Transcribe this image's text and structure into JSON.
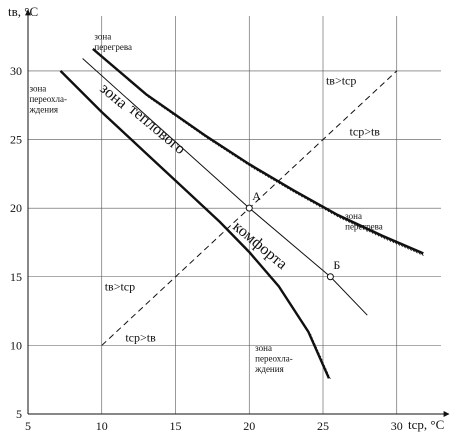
{
  "chart_data": {
    "type": "line",
    "title": "",
    "xlabel": "tср, °C",
    "ylabel": "tв, °C",
    "xlim": [
      5,
      33
    ],
    "ylim": [
      5,
      34
    ],
    "grid": true,
    "x_ticks": [
      "5",
      "10",
      "15",
      "20",
      "25",
      "30"
    ],
    "y_ticks": [
      "5",
      "10",
      "15",
      "20",
      "25",
      "30"
    ],
    "series": [
      {
        "role": "upper-boundary",
        "hatched": true,
        "points": [
          [
            9.4,
            31.6
          ],
          [
            13,
            28.3
          ],
          [
            17,
            25.3
          ],
          [
            20,
            23.2
          ],
          [
            23,
            21.3
          ],
          [
            26,
            19.5
          ],
          [
            29,
            18
          ],
          [
            31.8,
            16.7
          ]
        ]
      },
      {
        "role": "lower-boundary",
        "hatched": true,
        "points": [
          [
            7.2,
            30.0
          ],
          [
            10,
            27.0
          ],
          [
            13,
            24.0
          ],
          [
            16,
            21.0
          ],
          [
            18,
            19.0
          ],
          [
            20,
            16.8
          ],
          [
            22,
            14.3
          ],
          [
            24,
            11.0
          ],
          [
            25.4,
            7.6
          ]
        ]
      },
      {
        "role": "comfort-line",
        "hatched": false,
        "points": [
          [
            8.7,
            30.9
          ],
          [
            20,
            20.0
          ],
          [
            25.5,
            15.0
          ],
          [
            28,
            12.2
          ]
        ]
      },
      {
        "role": "diagonal-tv-equals-tcp",
        "dashed": true,
        "points": [
          [
            10,
            10
          ],
          [
            30,
            30
          ]
        ]
      }
    ],
    "points": [
      {
        "label": "А",
        "x": 20,
        "y": 20
      },
      {
        "label": "Б",
        "x": 25.5,
        "y": 15
      }
    ],
    "annotations": [
      {
        "lines": [
          "зона",
          "перегрева"
        ],
        "x": 9.5,
        "y": 32.3,
        "cls": "zone-label"
      },
      {
        "lines": [
          "зона",
          "переохла-",
          "ждения"
        ],
        "x": 5.1,
        "y": 28.5,
        "cls": "zone-label"
      },
      {
        "lines": [
          "зона",
          "перегрева"
        ],
        "x": 26.5,
        "y": 19.2,
        "cls": "zone-label"
      },
      {
        "lines": [
          "зона",
          "переохла-",
          "ждения"
        ],
        "x": 20.4,
        "y": 9.6,
        "cls": "zone-label"
      },
      {
        "lines": [
          "tв>tср"
        ],
        "x": 25.2,
        "y": 29.0,
        "cls": "ineq"
      },
      {
        "lines": [
          "tср>tв"
        ],
        "x": 26.8,
        "y": 25.3,
        "cls": "ineq"
      },
      {
        "lines": [
          "tв>tср"
        ],
        "x": 10.2,
        "y": 14.0,
        "cls": "ineq"
      },
      {
        "lines": [
          "tср>tв"
        ],
        "x": 11.6,
        "y": 10.3,
        "cls": "ineq"
      }
    ],
    "band_text": [
      "зона",
      "теплового",
      "комфорта"
    ]
  }
}
